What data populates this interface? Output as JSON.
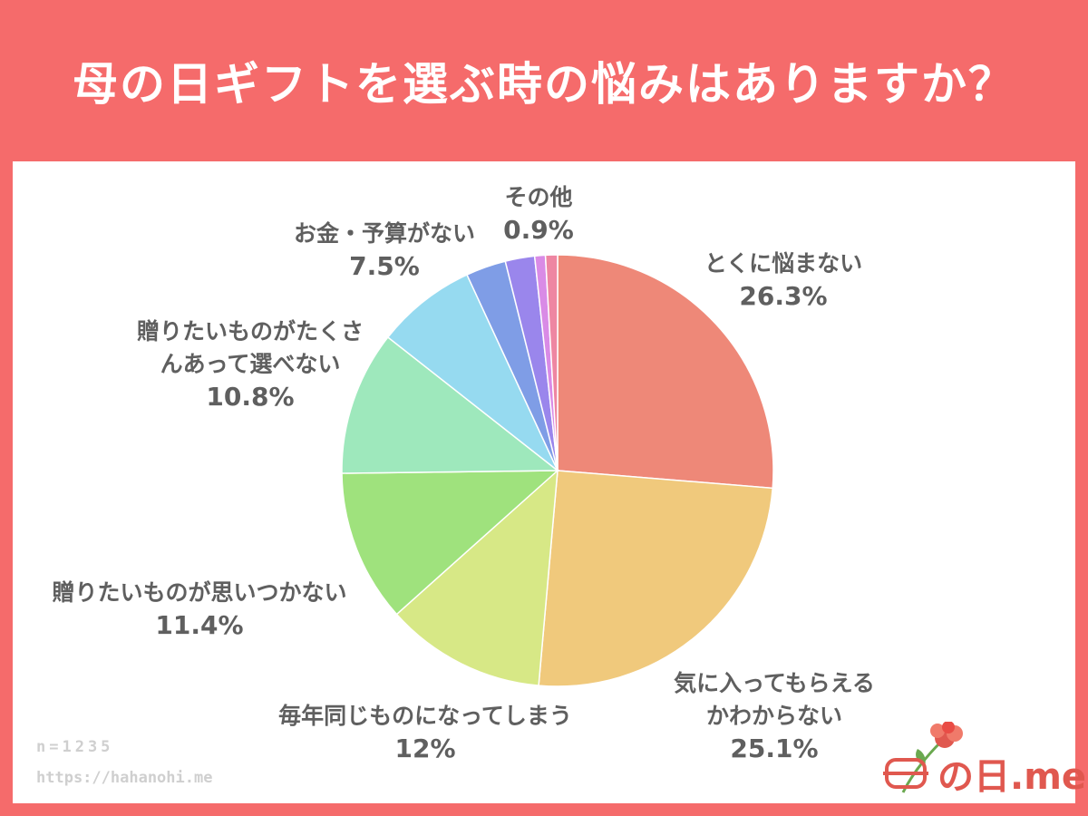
{
  "header": {
    "title": "母の日ギフトを選ぶ時の悩みはありますか？"
  },
  "chart_data": {
    "type": "pie",
    "title": "母の日ギフトを選ぶ時の悩みはありますか？",
    "start": "12 o'clock",
    "direction": "clockwise",
    "slices": [
      {
        "label": "とくに悩まない",
        "value": 26.3,
        "value_label": "26.3%",
        "color": "#ee8878"
      },
      {
        "label": "気に入ってもらえるかわからない",
        "label_lines": [
          "気に入ってもらえる",
          "かわからない"
        ],
        "value": 25.1,
        "value_label": "25.1%",
        "color": "#f0c97c"
      },
      {
        "label": "毎年同じものになってしまう",
        "value": 12,
        "value_label": "12%",
        "color": "#d7e886"
      },
      {
        "label": "贈りたいものが思いつかない",
        "value": 11.4,
        "value_label": "11.4%",
        "color": "#9fe27d"
      },
      {
        "label": "贈りたいものがたくさんあって選べない",
        "label_lines": [
          "贈りたいものがたくさ",
          "んあって選べない"
        ],
        "value": 10.8,
        "value_label": "10.8%",
        "color": "#9ee8bc"
      },
      {
        "label": "お金・予算がない",
        "value": 7.5,
        "value_label": "7.5%",
        "color": "#96daf0"
      },
      {
        "label": "",
        "value": 3.0,
        "value_label": "",
        "color": "#7f9de6"
      },
      {
        "label": "",
        "value": 2.2,
        "value_label": "",
        "color": "#9a86ec"
      },
      {
        "label": "",
        "value": 0.8,
        "value_label": "",
        "color": "#d98be6"
      },
      {
        "label": "その他",
        "value": 0.9,
        "value_label": "0.9%",
        "color": "#ee86a2"
      }
    ]
  },
  "footer": {
    "sample_size": "n=1235",
    "source_url": "https://hahanohi.me",
    "brand": "の日.me"
  },
  "colors": {
    "background": "#f56b6b",
    "panel": "#ffffff",
    "label_text": "#5f5f5f",
    "brand": "#e0584f"
  }
}
